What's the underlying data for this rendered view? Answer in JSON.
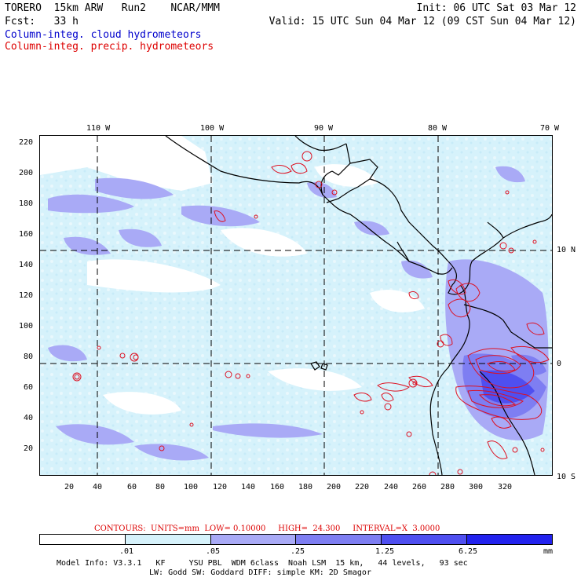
{
  "header": {
    "line1_left": "TORERO  15km ARW   Run2    NCAR/MMM",
    "line1_right": "Init: 06 UTC Sat 03 Mar 12",
    "line2_left": "Fcst:   33 h",
    "line2_right": "Valid: 15 UTC Sun 04 Mar 12 (09 CST Sun 04 Mar 12)",
    "field_cloud": "Column-integ. cloud hydrometeors",
    "field_precip": "Column-integ. precip. hydrometeors"
  },
  "colors": {
    "cloud_text": "#0000cc",
    "precip_text": "#dd0000",
    "contour": "#dd1122",
    "coast": "#000000",
    "levels": [
      "#ffffff",
      "#d6f2fb",
      "#a9aaf6",
      "#7e7ef2",
      "#4f4ff0",
      "#2222ee"
    ]
  },
  "map": {
    "top_lon_labels": [
      "110 W",
      "100 W",
      "90 W",
      "80 W",
      "70 W"
    ],
    "right_lat_labels": [
      "10 N",
      "0",
      "10 S"
    ],
    "y_tick_labels": [
      "220",
      "200",
      "180",
      "160",
      "140",
      "120",
      "100",
      "80",
      "60",
      "40",
      "20"
    ],
    "x_tick_labels": [
      "20",
      "40",
      "60",
      "80",
      "100",
      "120",
      "140",
      "160",
      "180",
      "200",
      "220",
      "240",
      "260",
      "280",
      "300",
      "320"
    ]
  },
  "contour_info": {
    "text": "CONTOURS:  UNITS=mm  LOW= 0.10000     HIGH=  24.300     INTERVAL=X  3.0000"
  },
  "colorbar": {
    "labels": [
      ".01",
      ".05",
      ".25",
      "1.25",
      "6.25"
    ],
    "unit": "mm"
  },
  "footer": {
    "line1": "Model Info: V3.3.1   KF     YSU PBL  WDM 6class  Noah LSM  15 km,   44 levels,   93 sec",
    "line2": "LW: Godd SW: Goddard DIFF: simple KM: 2D Smagor"
  }
}
